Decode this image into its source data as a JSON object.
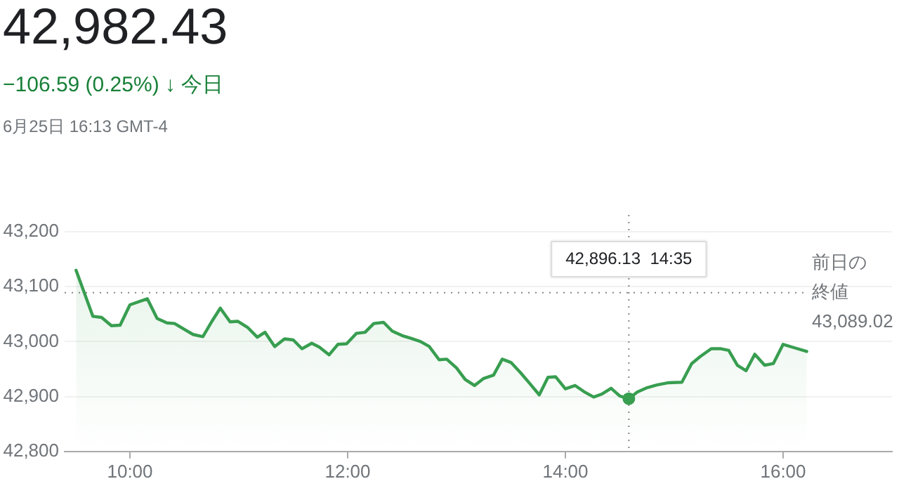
{
  "chart_data": {
    "type": "area",
    "title": "42,982.43",
    "subtitle": "−106.59 (0.25%) ↓ 今日",
    "annotations": [
      "6月25日 16:13 GMT-4",
      "42,896.13  14:35"
    ],
    "series": [
      {
        "color": "#389e50",
        "x": [
          9.505,
          9.66,
          9.74,
          9.83,
          9.91,
          10.0,
          10.16,
          10.25,
          10.34,
          10.41,
          10.51,
          10.58,
          10.67,
          10.75,
          10.83,
          10.92,
          10.99,
          11.08,
          11.17,
          11.24,
          11.33,
          11.42,
          11.5,
          11.58,
          11.67,
          11.74,
          11.83,
          11.91,
          11.99,
          12.08,
          12.16,
          12.24,
          12.33,
          12.41,
          12.5,
          12.58,
          12.67,
          12.75,
          12.84,
          12.91,
          13.0,
          13.08,
          13.165,
          13.25,
          13.34,
          13.42,
          13.5,
          13.59,
          13.68,
          13.76,
          13.84,
          13.91,
          14.0,
          14.09,
          14.17,
          14.26,
          14.34,
          14.42,
          14.5,
          14.583,
          14.66,
          14.75,
          14.84,
          14.94,
          15.07,
          15.16,
          15.24,
          15.34,
          15.43,
          15.5,
          15.58,
          15.66,
          15.74,
          15.83,
          15.91,
          16.0,
          16.1,
          16.217
        ],
        "values": [
          43130,
          43046,
          43044,
          43029,
          43030,
          43067,
          43078,
          43042,
          43034,
          43033,
          43021,
          43013,
          43009,
          43036,
          43061,
          43036,
          43037,
          43026,
          43008,
          43017,
          42991,
          43005,
          43003,
          42987,
          42997,
          42990,
          42976,
          42995,
          42996,
          43015,
          43017,
          43033,
          43035,
          43019,
          43011,
          43006,
          43000,
          42991,
          42967,
          42968,
          42952,
          42931,
          42920,
          42933,
          42939,
          42968,
          42962,
          42943,
          42922,
          42903,
          42935,
          42936,
          42914,
          42920,
          42909,
          42899,
          42905,
          42915,
          42901,
          42896,
          42908,
          42916,
          42921,
          42925,
          42926,
          42960,
          42973,
          42987,
          42987,
          42984,
          42957,
          42947,
          42977,
          42957,
          42960,
          42995,
          42989,
          42982
        ]
      }
    ],
    "xlim": [
      9.4,
      17
    ],
    "xticks": [
      {
        "value": 10,
        "label": "10:00"
      },
      {
        "value": 12,
        "label": "12:00"
      },
      {
        "value": 14,
        "label": "14:00"
      },
      {
        "value": 16,
        "label": "16:00"
      }
    ],
    "ylim": [
      42800,
      43200
    ],
    "yticks": [
      {
        "value": 42800,
        "label": "42,800"
      },
      {
        "value": 42900,
        "label": "42,900"
      },
      {
        "value": 43000,
        "label": "43,000"
      },
      {
        "value": 43100,
        "label": "43,100"
      },
      {
        "value": 43200,
        "label": "43,200"
      }
    ],
    "ref_lines": [
      {
        "axis": "y",
        "value": 43089.02,
        "label": "前日の終値 43,089.02",
        "line_style": "dotted"
      },
      {
        "axis": "x",
        "value": 14.583,
        "line_style": "dotted"
      }
    ],
    "grid": "y",
    "legend": false,
    "marker": "none",
    "line_style": "solid"
  }
}
